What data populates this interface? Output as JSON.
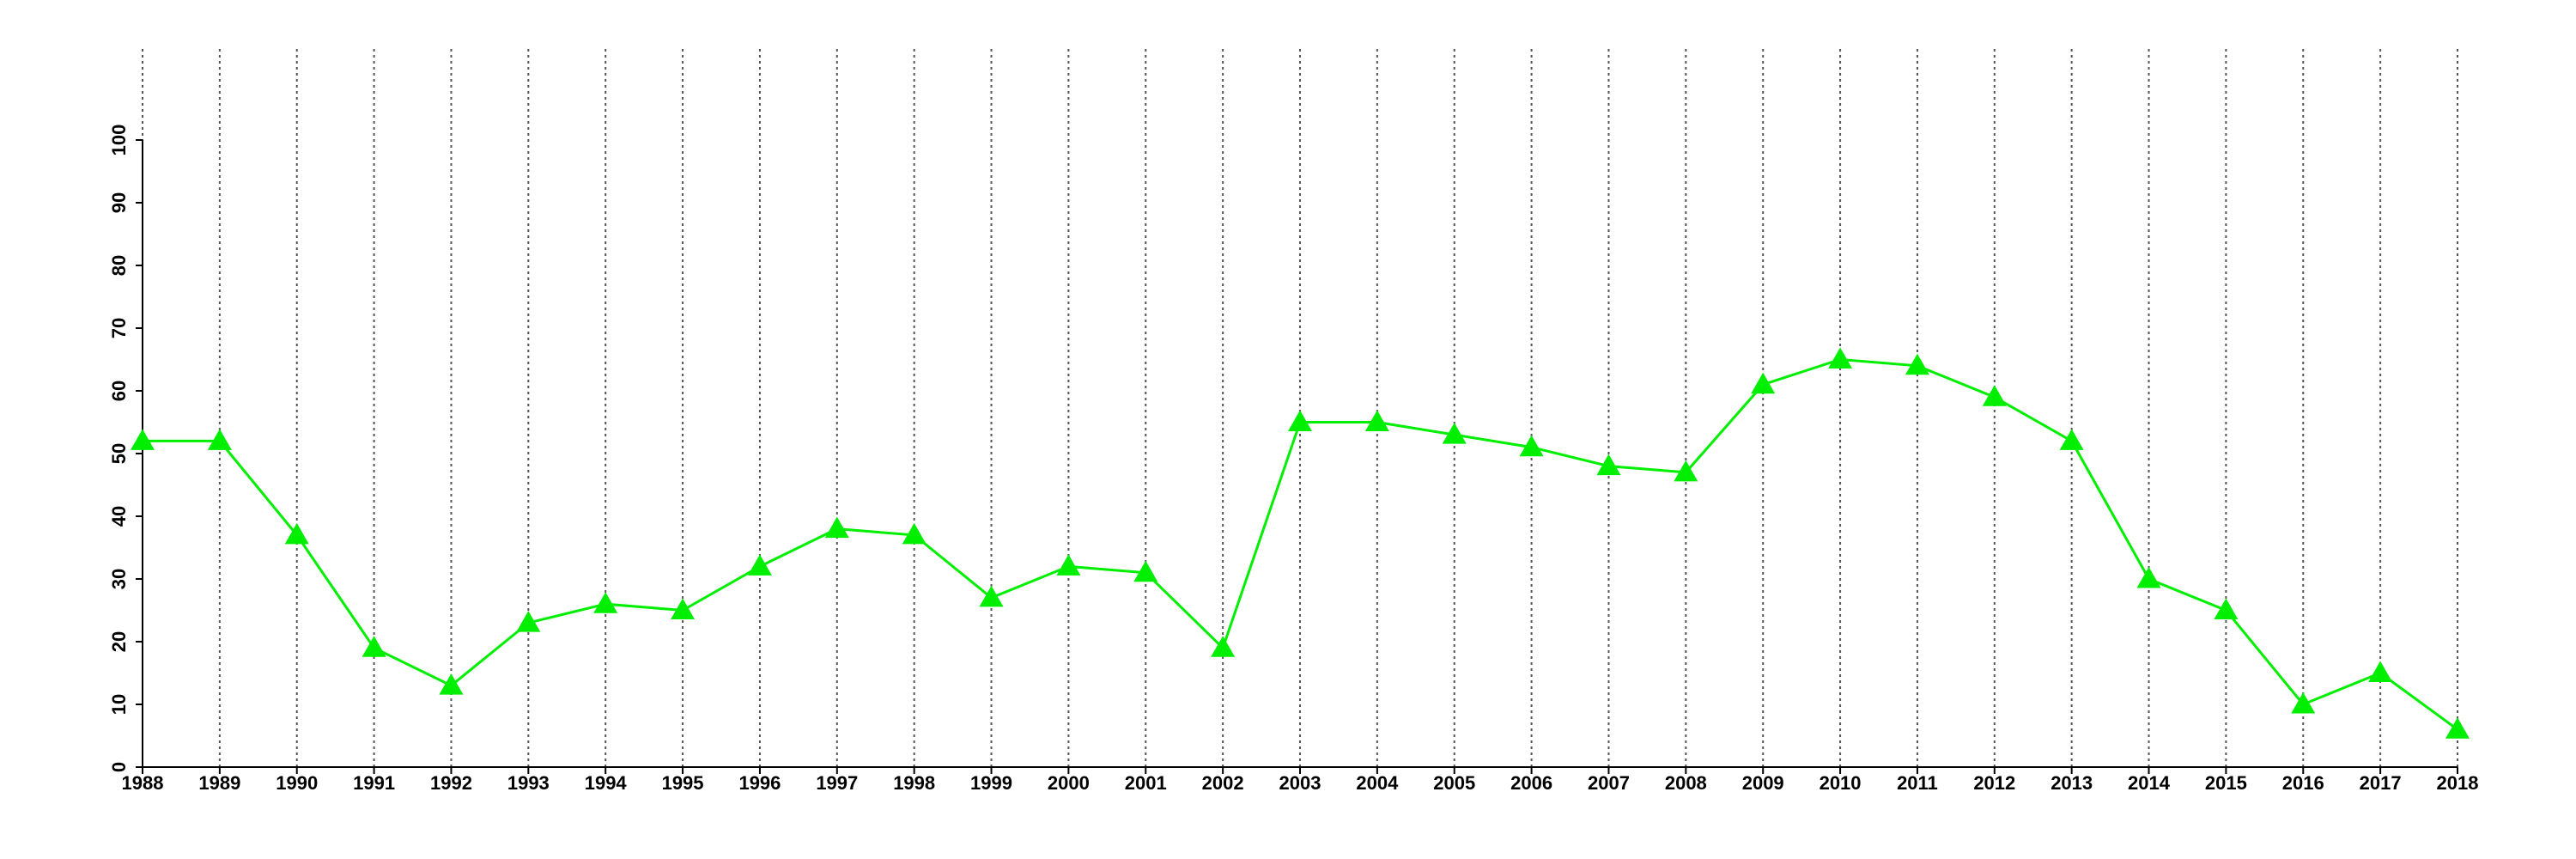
{
  "chart_data": {
    "type": "line",
    "x": [
      1988,
      1989,
      1990,
      1991,
      1992,
      1993,
      1994,
      1995,
      1996,
      1997,
      1998,
      1999,
      2000,
      2001,
      2002,
      2003,
      2004,
      2005,
      2006,
      2007,
      2008,
      2009,
      2010,
      2011,
      2012,
      2013,
      2014,
      2015,
      2016,
      2017,
      2018
    ],
    "values": [
      52,
      52,
      37,
      19,
      13,
      23,
      26,
      25,
      32,
      38,
      37,
      27,
      32,
      31,
      19,
      55,
      55,
      53,
      51,
      48,
      47,
      61,
      65,
      64,
      59,
      52,
      30,
      25,
      10,
      15,
      6
    ],
    "color": "#00ee00",
    "marker": "triangle",
    "xlim": [
      1988,
      2018
    ],
    "xticks": [
      1988,
      1989,
      1990,
      1991,
      1992,
      1993,
      1994,
      1995,
      1996,
      1997,
      1998,
      1999,
      2000,
      2001,
      2002,
      2003,
      2004,
      2005,
      2006,
      2007,
      2008,
      2009,
      2010,
      2011,
      2012,
      2013,
      2014,
      2015,
      2016,
      2017,
      2018
    ],
    "ylim": [
      0,
      100
    ],
    "yticks": [
      0,
      10,
      20,
      30,
      40,
      50,
      60,
      70,
      80,
      90,
      100
    ],
    "grid": "x"
  }
}
